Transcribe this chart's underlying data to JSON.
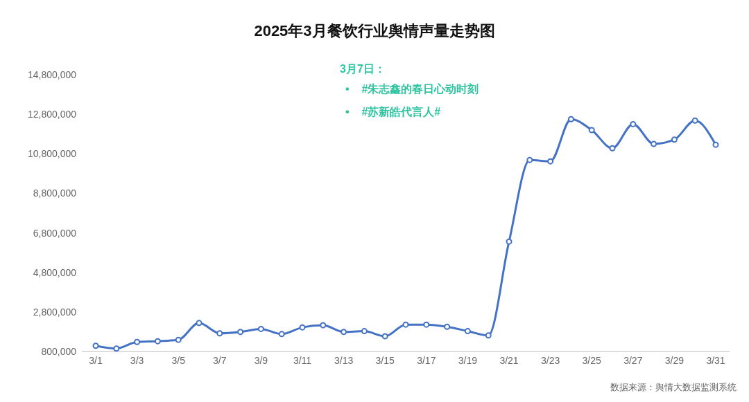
{
  "chart_data": {
    "type": "line",
    "title": "2025年3月餐饮行业舆情声量走势图",
    "categories": [
      "3/1",
      null,
      "3/3",
      null,
      "3/5",
      null,
      "3/7",
      null,
      "3/9",
      null,
      "3/11",
      null,
      "3/13",
      null,
      "3/15",
      null,
      "3/17",
      null,
      "3/19",
      null,
      "3/21",
      null,
      "3/23",
      null,
      "3/25",
      null,
      "3/27",
      null,
      "3/29",
      null,
      "3/31"
    ],
    "series": [
      {
        "color": "#4472c4",
        "values": [
          1090000,
          950000,
          1280000,
          1320000,
          1390000,
          2240000,
          1720000,
          1790000,
          1940000,
          1680000,
          2020000,
          2130000,
          1790000,
          1830000,
          1570000,
          2160000,
          2160000,
          2050000,
          1830000,
          1610000,
          6360000,
          10490000,
          10420000,
          12550000,
          12000000,
          11080000,
          12300000,
          11300000,
          11520000,
          12480000,
          11260000
        ]
      }
    ],
    "ylim": [
      800000,
      14800000
    ],
    "yticks": [
      {
        "value": 800000,
        "label": "800,000"
      },
      {
        "value": 2800000,
        "label": "2,800,000"
      },
      {
        "value": 4800000,
        "label": "4,800,000"
      },
      {
        "value": 6800000,
        "label": "6,800,000"
      },
      {
        "value": 8800000,
        "label": "8,800,000"
      },
      {
        "value": 10800000,
        "label": "10,800,000"
      },
      {
        "value": 12800000,
        "label": "12,800,000"
      },
      {
        "value": 14800000,
        "label": "14,800,000"
      }
    ],
    "grid": false,
    "legend": false,
    "marker": "circle",
    "line_style": "solid",
    "annotations": [
      "3月7日：",
      "•    #朱志鑫的春日心动时刻",
      "•    #苏新皓代言人#",
      "数据来源：舆情大数据监测系统"
    ]
  }
}
